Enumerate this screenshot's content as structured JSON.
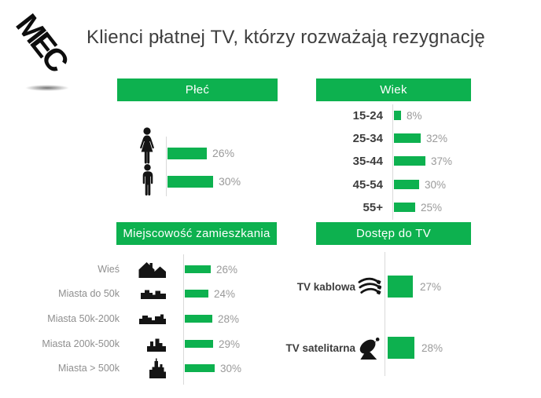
{
  "logo": {
    "text": "MEC"
  },
  "title": "Klienci płatnej TV, którzy rozważają rezygnację",
  "colors": {
    "accent_green": "#0db14f",
    "axis_gray": "#d9d9d9",
    "title_gray": "#3e3e3e",
    "value_gray": "#9a9a9a",
    "icon_black": "#141414"
  },
  "chart_data": [
    {
      "type": "bar",
      "orientation": "horizontal",
      "title": "Płeć",
      "categories": [
        "kobieta",
        "mężczyzna"
      ],
      "category_icons": [
        "woman-icon",
        "man-icon"
      ],
      "values": [
        26,
        30
      ],
      "value_labels": [
        "26%",
        "30%"
      ],
      "unit": "%",
      "legend": "none",
      "grid": "off"
    },
    {
      "type": "bar",
      "orientation": "horizontal",
      "title": "Wiek",
      "categories": [
        "15-24",
        "25-34",
        "35-44",
        "45-54",
        "55+"
      ],
      "values": [
        8,
        32,
        37,
        30,
        25
      ],
      "value_labels": [
        "8%",
        "32%",
        "37%",
        "30%",
        "25%"
      ],
      "unit": "%",
      "legend": "none",
      "grid": "off"
    },
    {
      "type": "bar",
      "orientation": "horizontal",
      "title": "Miejscowość zamieszkania",
      "categories": [
        "Wieś",
        "Miasta do 50k",
        "Miasta 50k-200k",
        "Miasta 200k-500k",
        "Miasta > 500k"
      ],
      "category_icons": [
        "village-houses-icon",
        "small-town-icon",
        "medium-town-icon",
        "large-town-icon",
        "big-city-icon"
      ],
      "values": [
        26,
        24,
        28,
        29,
        30
      ],
      "value_labels": [
        "26%",
        "24%",
        "28%",
        "29%",
        "30%"
      ],
      "unit": "%",
      "legend": "none",
      "grid": "off"
    },
    {
      "type": "bar",
      "orientation": "horizontal",
      "title": "Dostęp do TV",
      "categories": [
        "TV kablowa",
        "TV satelitarna"
      ],
      "category_icons": [
        "cable-tv-icon",
        "satellite-dish-icon"
      ],
      "values": [
        27,
        28
      ],
      "value_labels": [
        "27%",
        "28%"
      ],
      "unit": "%",
      "legend": "none",
      "grid": "off"
    }
  ]
}
